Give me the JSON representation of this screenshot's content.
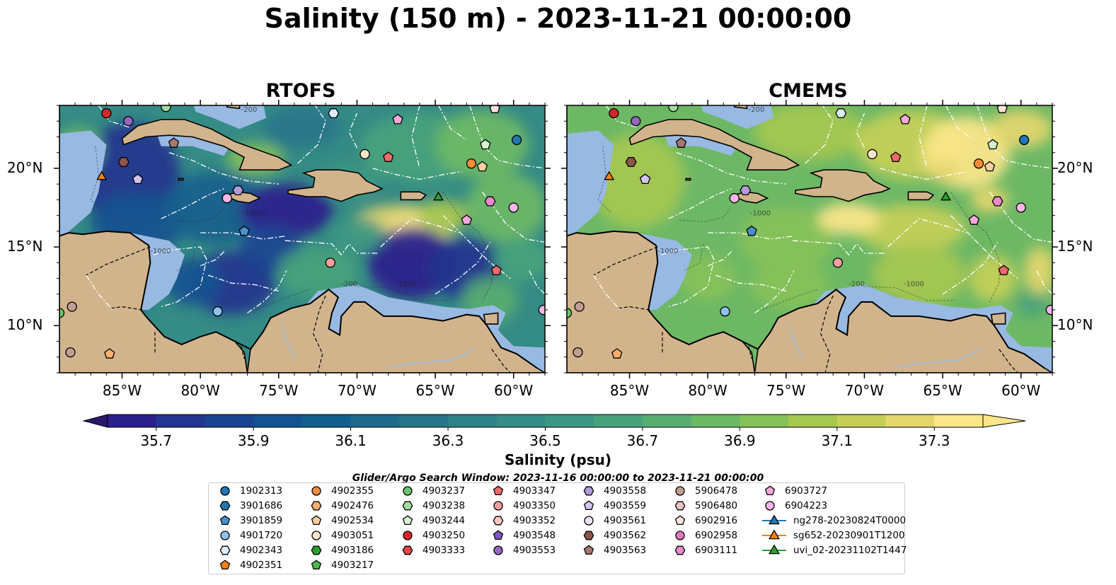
{
  "title": "Salinity (150 m) - 2023-11-21 00:00:00",
  "panels": [
    {
      "title": "RTOFS",
      "model": "rtofs"
    },
    {
      "title": "CMEMS",
      "model": "cmems"
    }
  ],
  "map": {
    "lon_range": [
      -89,
      -58
    ],
    "lat_range": [
      7,
      24
    ],
    "lon_ticks": [
      {
        "value": -85,
        "label": "85°W"
      },
      {
        "value": -80,
        "label": "80°W"
      },
      {
        "value": -75,
        "label": "75°W"
      },
      {
        "value": -70,
        "label": "70°W"
      },
      {
        "value": -65,
        "label": "65°W"
      },
      {
        "value": -60,
        "label": "60°W"
      }
    ],
    "lat_ticks": [
      {
        "value": 20,
        "label": "20°N"
      },
      {
        "value": 15,
        "label": "15°N"
      },
      {
        "value": 10,
        "label": "10°N"
      }
    ],
    "contour_labels": [
      "-200",
      "-1000",
      "-1000",
      "-1000",
      "-200"
    ],
    "colors": {
      "land": "#d2b48c",
      "shelf": "#98b9e2",
      "eez_lines": "#ffffff",
      "coast": "#000000"
    }
  },
  "colorbar": {
    "label": "Salinity (psu)",
    "min": 35.6,
    "max": 37.4,
    "step": 0.1,
    "extend": "both",
    "ticks": [
      "35.7",
      "35.9",
      "36.1",
      "36.3",
      "36.5",
      "36.7",
      "36.9",
      "37.1",
      "37.3"
    ],
    "colormap": "haline",
    "colors": [
      "#2a186c",
      "#2b1f8c",
      "#23358e",
      "#1b4491",
      "#145390",
      "#135f8d",
      "#1f6a8b",
      "#28758a",
      "#2f8088",
      "#358b85",
      "#3c9782",
      "#47a27c",
      "#58ad72",
      "#6db865",
      "#87c159",
      "#a6c850",
      "#c5cf58",
      "#e4d66d",
      "#fde68a"
    ]
  },
  "search_window": "Glider/Argo Search Window: 2023-11-16 00:00:00 to 2023-11-21 00:00:00",
  "legend": {
    "columns": [
      [
        {
          "label": "1902313",
          "marker": "circle",
          "color": "#1f77b4"
        },
        {
          "label": "3901686",
          "marker": "hexagon",
          "color": "#1f77b4"
        },
        {
          "label": "3901859",
          "marker": "pentagon",
          "color": "#4a90c8"
        },
        {
          "label": "4901720",
          "marker": "circle",
          "color": "#8ec2ec"
        },
        {
          "label": "4902343",
          "marker": "hexagon",
          "color": "#dceefc"
        },
        {
          "label": "4902351",
          "marker": "pentagon",
          "color": "#ff7f0e"
        }
      ],
      [
        {
          "label": "4902355",
          "marker": "circle",
          "color": "#fd8d3c"
        },
        {
          "label": "4902476",
          "marker": "hexagon",
          "color": "#fdae6b"
        },
        {
          "label": "4902534",
          "marker": "pentagon",
          "color": "#fdd0a2"
        },
        {
          "label": "4903051",
          "marker": "circle",
          "color": "#fee6ce"
        },
        {
          "label": "4903186",
          "marker": "hexagon",
          "color": "#2ca02c"
        },
        {
          "label": "4903217",
          "marker": "pentagon",
          "color": "#4cb848"
        }
      ],
      [
        {
          "label": "4903237",
          "marker": "circle",
          "color": "#6cc46a"
        },
        {
          "label": "4903238",
          "marker": "hexagon",
          "color": "#a1dca0"
        },
        {
          "label": "4903244",
          "marker": "pentagon",
          "color": "#d4f5d0"
        },
        {
          "label": "4903250",
          "marker": "circle",
          "color": "#d62728"
        },
        {
          "label": "4903333",
          "marker": "hexagon",
          "color": "#e04747"
        }
      ],
      [
        {
          "label": "4903347",
          "marker": "pentagon",
          "color": "#ec6a6a"
        },
        {
          "label": "4903350",
          "marker": "circle",
          "color": "#f4a09e"
        },
        {
          "label": "4903352",
          "marker": "hexagon",
          "color": "#fbc6c4"
        },
        {
          "label": "4903548",
          "marker": "pentagon",
          "color": "#7e57c2"
        },
        {
          "label": "4903553",
          "marker": "circle",
          "color": "#9467bd"
        }
      ],
      [
        {
          "label": "4903558",
          "marker": "hexagon",
          "color": "#b39ad8"
        },
        {
          "label": "4903559",
          "marker": "pentagon",
          "color": "#d3c2ef"
        },
        {
          "label": "4903561",
          "marker": "circle",
          "color": "#ece3fa"
        },
        {
          "label": "4903562",
          "marker": "hexagon",
          "color": "#8c564b"
        },
        {
          "label": "4903563",
          "marker": "pentagon",
          "color": "#a6786d"
        }
      ],
      [
        {
          "label": "5906478",
          "marker": "circle",
          "color": "#c49c94"
        },
        {
          "label": "5906480",
          "marker": "hexagon",
          "color": "#e6c4bc"
        },
        {
          "label": "6902916",
          "marker": "pentagon",
          "color": "#fbe4dd"
        },
        {
          "label": "6902958",
          "marker": "circle",
          "color": "#e377c2"
        },
        {
          "label": "6903111",
          "marker": "hexagon",
          "color": "#e889cc"
        }
      ],
      [
        {
          "label": "6903727",
          "marker": "pentagon",
          "color": "#f4a8dc"
        },
        {
          "label": "6904223",
          "marker": "circle",
          "color": "#f7b6e5"
        },
        {
          "label": "ng278-20230824T0000",
          "marker": "triangle-line",
          "color": "#1f77b4"
        },
        {
          "label": "sg652-20230901T1200",
          "marker": "triangle-line",
          "color": "#ff7f0e"
        },
        {
          "label": "uvi_02-20231102T1447",
          "marker": "triangle-line",
          "color": "#2ca02c"
        }
      ]
    ]
  },
  "floats": [
    {
      "lon": -86.0,
      "lat": 23.5,
      "marker": "circle",
      "color": "#d62728"
    },
    {
      "lon": -84.6,
      "lat": 23.0,
      "marker": "circle",
      "color": "#9467bd"
    },
    {
      "lon": -82.2,
      "lat": 23.9,
      "marker": "circle",
      "color": "#a1dca0"
    },
    {
      "lon": -71.5,
      "lat": 23.5,
      "marker": "hexagon",
      "color": "#dceefc"
    },
    {
      "lon": -67.4,
      "lat": 23.1,
      "marker": "pentagon",
      "color": "#f4a8dc"
    },
    {
      "lon": -61.2,
      "lat": 23.8,
      "marker": "pentagon",
      "color": "#fbe4dd"
    },
    {
      "lon": -59.8,
      "lat": 21.8,
      "marker": "circle",
      "color": "#1f77b4"
    },
    {
      "lon": -61.8,
      "lat": 21.5,
      "marker": "pentagon",
      "color": "#d4f5d0"
    },
    {
      "lon": -62.7,
      "lat": 20.3,
      "marker": "circle",
      "color": "#fd8d3c"
    },
    {
      "lon": -62.0,
      "lat": 20.1,
      "marker": "pentagon",
      "color": "#fdd0a2"
    },
    {
      "lon": -81.7,
      "lat": 21.6,
      "marker": "pentagon",
      "color": "#a6786d"
    },
    {
      "lon": -84.9,
      "lat": 20.4,
      "marker": "hexagon",
      "color": "#8c564b"
    },
    {
      "lon": -69.5,
      "lat": 20.9,
      "marker": "circle",
      "color": "#fee6ce"
    },
    {
      "lon": -68.0,
      "lat": 20.7,
      "marker": "pentagon",
      "color": "#ec6a6a"
    },
    {
      "lon": -86.3,
      "lat": 19.5,
      "marker": "triangle",
      "color": "#ff7f0e"
    },
    {
      "lon": -84.0,
      "lat": 19.3,
      "marker": "pentagon",
      "color": "#d3c2ef"
    },
    {
      "lon": -77.6,
      "lat": 18.6,
      "marker": "hexagon",
      "color": "#b39ad8"
    },
    {
      "lon": -78.3,
      "lat": 18.1,
      "marker": "circle",
      "color": "#f7b6e5"
    },
    {
      "lon": -64.8,
      "lat": 18.2,
      "marker": "triangle",
      "color": "#2ca02c"
    },
    {
      "lon": -61.5,
      "lat": 17.9,
      "marker": "hexagon",
      "color": "#e889cc"
    },
    {
      "lon": -60.0,
      "lat": 17.5,
      "marker": "circle",
      "color": "#f7b6e5"
    },
    {
      "lon": -63.0,
      "lat": 16.7,
      "marker": "pentagon",
      "color": "#f4a8dc"
    },
    {
      "lon": -77.2,
      "lat": 16.0,
      "marker": "pentagon",
      "color": "#4a90c8"
    },
    {
      "lon": -71.7,
      "lat": 14.0,
      "marker": "circle",
      "color": "#f4a09e"
    },
    {
      "lon": -61.1,
      "lat": 13.5,
      "marker": "pentagon",
      "color": "#ec6a6a"
    },
    {
      "lon": -78.9,
      "lat": 10.9,
      "marker": "circle",
      "color": "#8ec2ec"
    },
    {
      "lon": -58.1,
      "lat": 11.0,
      "marker": "circle",
      "color": "#f7b6e5"
    },
    {
      "lon": -89.0,
      "lat": 10.8,
      "marker": "circle",
      "color": "#6cc46a"
    },
    {
      "lon": -88.2,
      "lat": 11.2,
      "marker": "circle",
      "color": "#c49c94"
    },
    {
      "lon": -88.3,
      "lat": 8.3,
      "marker": "circle",
      "color": "#c49c94"
    },
    {
      "lon": -85.8,
      "lat": 8.2,
      "marker": "pentagon",
      "color": "#fdae6b"
    }
  ]
}
